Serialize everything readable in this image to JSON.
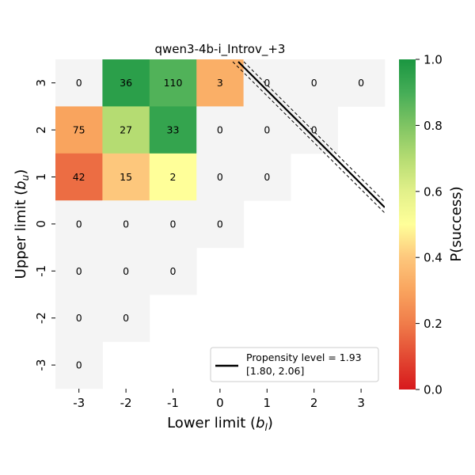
{
  "chart_data": {
    "type": "heatmap",
    "title": "qwen3-4b-i_Introv_+3",
    "xlabel": {
      "main": "Lower limit (",
      "sym": "b",
      "sub": "l",
      "close": ")"
    },
    "ylabel": {
      "main": "Upper limit (",
      "sym": "b",
      "sub": "u",
      "close": ")"
    },
    "x_ticks": [
      "-3",
      "-2",
      "-1",
      "0",
      "1",
      "2",
      "3"
    ],
    "y_ticks": [
      "3",
      "2",
      "1",
      "0",
      "-1",
      "-2",
      "-3"
    ],
    "cells": [
      {
        "x": -3,
        "y": 3,
        "label": "0",
        "p": null
      },
      {
        "x": -2,
        "y": 3,
        "label": "36",
        "p": 0.96
      },
      {
        "x": -1,
        "y": 3,
        "label": "110",
        "p": 0.88
      },
      {
        "x": 0,
        "y": 3,
        "label": "3",
        "p": 0.33
      },
      {
        "x": 1,
        "y": 3,
        "label": "0",
        "p": null
      },
      {
        "x": 2,
        "y": 3,
        "label": "0",
        "p": null
      },
      {
        "x": 3,
        "y": 3,
        "label": "0",
        "p": null
      },
      {
        "x": -3,
        "y": 2,
        "label": "75",
        "p": 0.3
      },
      {
        "x": -2,
        "y": 2,
        "label": "27",
        "p": 0.7
      },
      {
        "x": -1,
        "y": 2,
        "label": "33",
        "p": 0.94
      },
      {
        "x": 0,
        "y": 2,
        "label": "0",
        "p": null
      },
      {
        "x": 1,
        "y": 2,
        "label": "0",
        "p": null
      },
      {
        "x": 2,
        "y": 2,
        "label": "0",
        "p": null
      },
      {
        "x": -3,
        "y": 1,
        "label": "42",
        "p": 0.17
      },
      {
        "x": -2,
        "y": 1,
        "label": "15",
        "p": 0.4
      },
      {
        "x": -1,
        "y": 1,
        "label": "2",
        "p": 0.5
      },
      {
        "x": 0,
        "y": 1,
        "label": "0",
        "p": null
      },
      {
        "x": 1,
        "y": 1,
        "label": "0",
        "p": null
      },
      {
        "x": -3,
        "y": 0,
        "label": "0",
        "p": null
      },
      {
        "x": -2,
        "y": 0,
        "label": "0",
        "p": null
      },
      {
        "x": -1,
        "y": 0,
        "label": "0",
        "p": null
      },
      {
        "x": 0,
        "y": 0,
        "label": "0",
        "p": null
      },
      {
        "x": -3,
        "y": -1,
        "label": "0",
        "p": null
      },
      {
        "x": -2,
        "y": -1,
        "label": "0",
        "p": null
      },
      {
        "x": -1,
        "y": -1,
        "label": "0",
        "p": null
      },
      {
        "x": -3,
        "y": -2,
        "label": "0",
        "p": null
      },
      {
        "x": -2,
        "y": -2,
        "label": "0",
        "p": null
      },
      {
        "x": -3,
        "y": -3,
        "label": "0",
        "p": null
      }
    ],
    "empty_cell_color": "#f4f4f4",
    "propensity": {
      "level": 1.93,
      "ci": [
        1.8,
        2.06
      ]
    },
    "legend": {
      "label": "Propensity level = 1.93",
      "ci_label": "[1.80, 2.06]",
      "placement": "lower-right"
    },
    "colorbar": {
      "label": "P(success)",
      "range": [
        0.0,
        1.0
      ],
      "ticks": [
        "0.0",
        "0.2",
        "0.4",
        "0.6",
        "0.8",
        "1.0"
      ],
      "colormap": "RdYlGn"
    }
  }
}
